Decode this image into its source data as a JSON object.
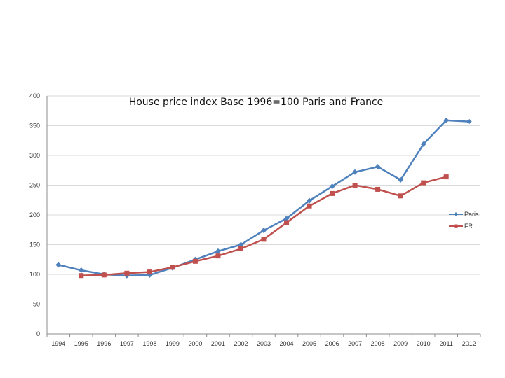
{
  "chart_data": {
    "type": "line",
    "title": "House price index Base 1996=100 Paris and France",
    "xlabel": "",
    "ylabel": "",
    "categories": [
      "1994",
      "1995",
      "1996",
      "1997",
      "1998",
      "1999",
      "2000",
      "2001",
      "2002",
      "2003",
      "2004",
      "2005",
      "2006",
      "2007",
      "2008",
      "2009",
      "2010",
      "2011",
      "2012"
    ],
    "yticks": [
      0,
      50,
      100,
      150,
      200,
      250,
      300,
      350,
      400
    ],
    "ylim": [
      0,
      400
    ],
    "grid": true,
    "legend_position": "right",
    "series": [
      {
        "name": "Paris",
        "color": "#4f81bd",
        "marker": "diamond",
        "values": [
          116,
          107,
          100,
          98,
          99,
          111,
          125,
          139,
          150,
          174,
          194,
          224,
          248,
          272,
          281,
          259,
          319,
          359,
          357
        ]
      },
      {
        "name": "FR",
        "color": "#c0504d",
        "marker": "square",
        "values": [
          null,
          98,
          99,
          102,
          104,
          112,
          122,
          131,
          143,
          159,
          187,
          215,
          236,
          250,
          243,
          232,
          254,
          264,
          null
        ]
      }
    ]
  }
}
